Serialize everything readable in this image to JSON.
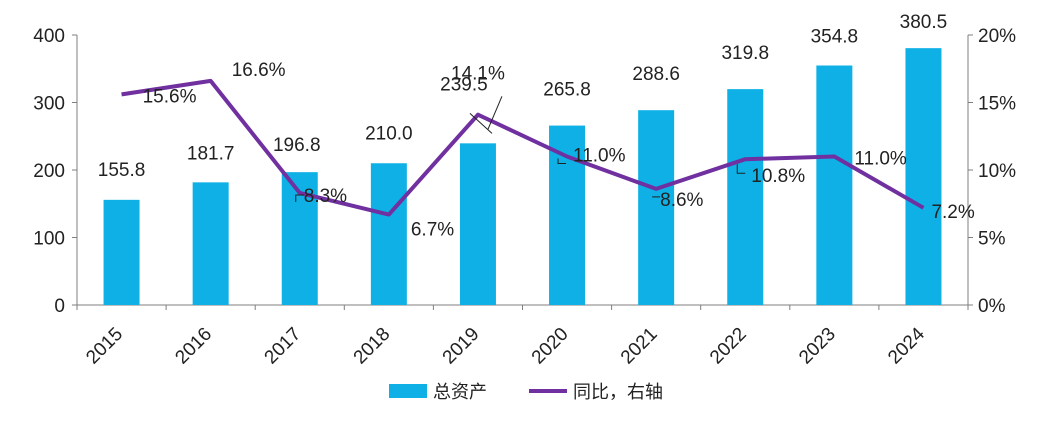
{
  "chart_data": {
    "type": "bar+line",
    "categories": [
      "2015",
      "2016",
      "2017",
      "2018",
      "2019",
      "2020",
      "2021",
      "2022",
      "2023",
      "2024"
    ],
    "series": [
      {
        "name": "总资产",
        "type": "bar",
        "axis": "left",
        "values": [
          155.8,
          181.7,
          196.8,
          210.0,
          239.5,
          265.8,
          288.6,
          319.8,
          354.8,
          380.5
        ],
        "labels": [
          "155.8",
          "181.7",
          "196.8",
          "210.0",
          "239.5",
          "265.8",
          "288.6",
          "319.8",
          "354.8",
          "380.5"
        ],
        "color": "#0EB0E6"
      },
      {
        "name": "同比，右轴",
        "type": "line",
        "axis": "right",
        "values": [
          15.6,
          16.6,
          8.3,
          6.7,
          14.1,
          11.0,
          8.6,
          10.8,
          11.0,
          7.2
        ],
        "labels": [
          "15.6%",
          "16.6%",
          "8.3%",
          "6.7%",
          "14.1%",
          "11.0%",
          "8.6%",
          "10.8%",
          "11.0%",
          "7.2%"
        ],
        "color": "#7030A0"
      }
    ],
    "y_left": {
      "min": 0,
      "max": 400,
      "ticks": [
        "0",
        "100",
        "200",
        "300",
        "400"
      ]
    },
    "y_right": {
      "min": 0,
      "max": 20,
      "ticks": [
        "0%",
        "5%",
        "10%",
        "15%",
        "20%"
      ]
    },
    "legend": {
      "position": "bottom",
      "items": [
        "总资产",
        "同比，右轴"
      ]
    },
    "grid": false
  }
}
